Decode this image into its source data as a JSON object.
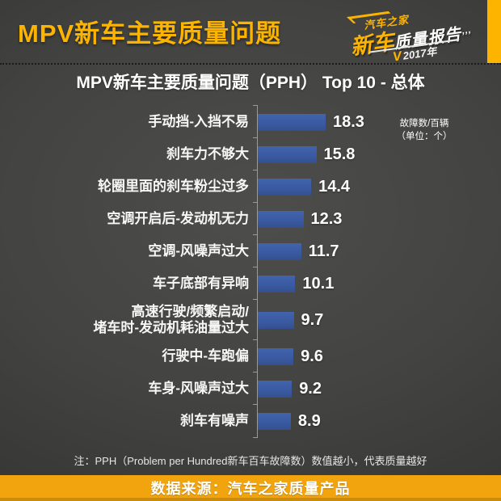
{
  "header": {
    "title": "MPV新车主要质量问题",
    "logo": {
      "brand": "汽车之家",
      "title_highlight": "新车",
      "title_rest": "质量报告",
      "quotes": "’’’",
      "check_mark": "V",
      "year": "2017年"
    }
  },
  "chart_data": {
    "type": "bar",
    "orientation": "horizontal",
    "title": "MPV新车主要质量问题（PPH） Top 10 - 总体",
    "unit_label_line1": "故障数/百辆",
    "unit_label_line2": "（单位：个）",
    "xlabel": "故障数/百辆（单位：个）",
    "ylabel": "",
    "xlim": [
      0,
      20
    ],
    "grid": false,
    "legend": "none",
    "categories": [
      "手动挡-入挡不易",
      "刹车力不够大",
      "轮圈里面的刹车粉尘过多",
      "空调开启后-发动机无力",
      "空调-风噪声过大",
      "车子底部有异响",
      "高速行驶/频繁启动/堵车时-发动机耗油量过大",
      "行驶中-车跑偏",
      "车身-风噪声过大",
      "刹车有噪声"
    ],
    "values": [
      18.3,
      15.8,
      14.4,
      12.3,
      11.7,
      10.1,
      9.7,
      9.6,
      9.2,
      8.9
    ],
    "rows": [
      {
        "label_lines": [
          "手动挡-入挡不易"
        ],
        "value": 18.3
      },
      {
        "label_lines": [
          "刹车力不够大"
        ],
        "value": 15.8
      },
      {
        "label_lines": [
          "轮圈里面的刹车粉尘过多"
        ],
        "value": 14.4
      },
      {
        "label_lines": [
          "空调开启后-发动机无力"
        ],
        "value": 12.3
      },
      {
        "label_lines": [
          "空调-风噪声过大"
        ],
        "value": 11.7
      },
      {
        "label_lines": [
          "车子底部有异响"
        ],
        "value": 10.1
      },
      {
        "label_lines": [
          "高速行驶/频繁启动/",
          "堵车时-发动机耗油量过大"
        ],
        "value": 9.7
      },
      {
        "label_lines": [
          "行驶中-车跑偏"
        ],
        "value": 9.6
      },
      {
        "label_lines": [
          "车身-风噪声过大"
        ],
        "value": 9.2
      },
      {
        "label_lines": [
          "刹车有噪声"
        ],
        "value": 8.9
      }
    ]
  },
  "note": "注：PPH（Problem per Hundred新车百车故障数）数值越小，代表质量越好",
  "footer": {
    "source": "数据来源：汽车之家质量产品"
  },
  "colors": {
    "accent_yellow": "#fcb400",
    "footer_yellow": "#f1a40e",
    "bar_blue": "#3a5aa2",
    "background_dark": "#3a3a38",
    "text_white": "#ffffff"
  }
}
